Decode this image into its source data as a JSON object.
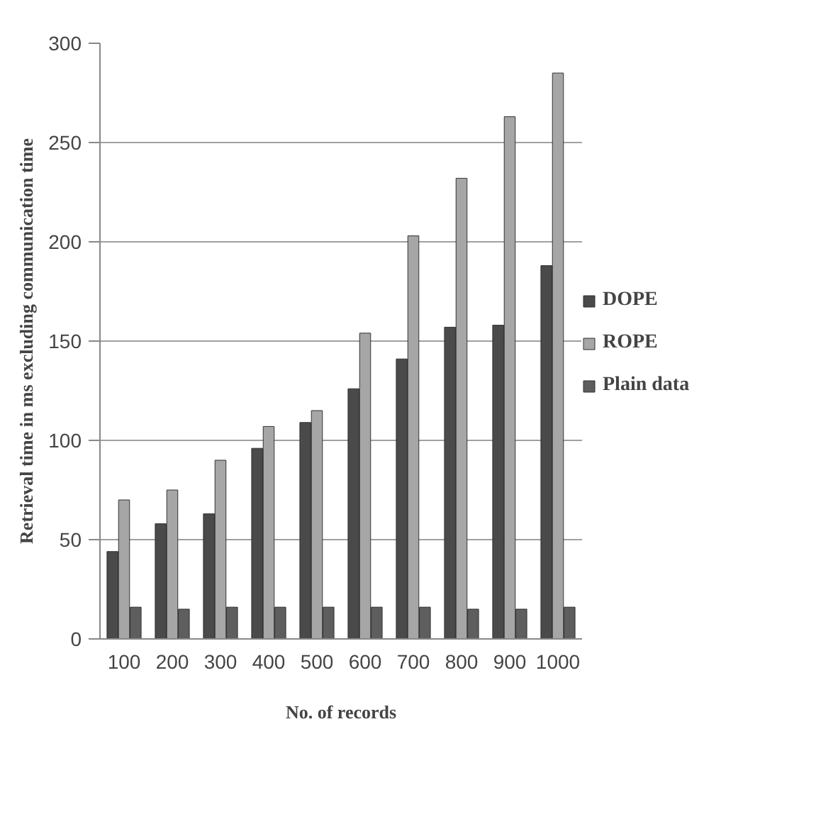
{
  "chart_data": {
    "type": "bar",
    "xlabel": "No. of records",
    "ylabel": "Retrieval time in ms excluding communication time",
    "categories": [
      "100",
      "200",
      "300",
      "400",
      "500",
      "600",
      "700",
      "800",
      "900",
      "1000"
    ],
    "series": [
      {
        "name": "DOPE",
        "color": "#4a4a4a",
        "values": [
          44,
          58,
          63,
          96,
          109,
          126,
          141,
          157,
          158,
          188
        ]
      },
      {
        "name": "ROPE",
        "color": "#a6a6a6",
        "values": [
          70,
          75,
          90,
          107,
          115,
          154,
          203,
          232,
          263,
          285
        ]
      },
      {
        "name": "Plain data",
        "color": "#5e5e5e",
        "values": [
          16,
          15,
          16,
          16,
          16,
          16,
          16,
          15,
          15,
          16
        ]
      }
    ],
    "ylim": [
      0,
      300
    ],
    "yticks": [
      0,
      50,
      100,
      150,
      200,
      250,
      300
    ],
    "grid": "y",
    "legend": "right"
  }
}
